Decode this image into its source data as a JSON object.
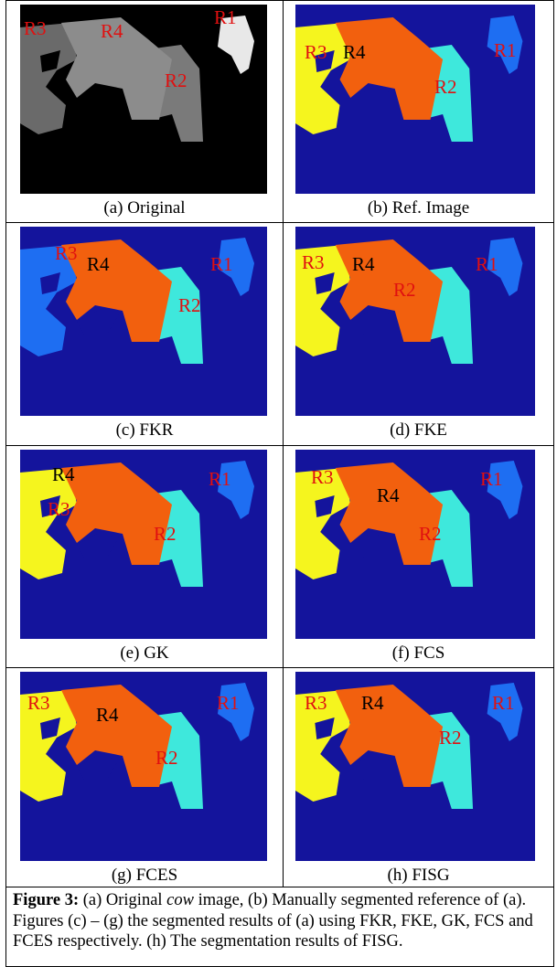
{
  "figure": {
    "panels": [
      {
        "caption": "(a) Original",
        "regions": [
          "R3",
          "R4",
          "R2",
          "R1"
        ]
      },
      {
        "caption": "(b) Ref. Image",
        "regions": [
          "R3",
          "R4",
          "R2",
          "R1"
        ]
      },
      {
        "caption": "(c) FKR",
        "regions": [
          "R3",
          "R4",
          "R2",
          "R1"
        ]
      },
      {
        "caption": "(d) FKE",
        "regions": [
          "R3",
          "R4",
          "R2",
          "R1"
        ]
      },
      {
        "caption": "(e) GK",
        "regions": [
          "R4",
          "R3",
          "R2",
          "R1"
        ]
      },
      {
        "caption": "(f) FCS",
        "regions": [
          "R3",
          "R4",
          "R2",
          "R1"
        ]
      },
      {
        "caption": "(g) FCES",
        "regions": [
          "R3",
          "R4",
          "R2",
          "R1"
        ]
      },
      {
        "caption": "(h) FISG",
        "regions": [
          "R3",
          "R4",
          "R2",
          "R1"
        ]
      }
    ],
    "caption": {
      "label": "Figure 3:",
      "parts": [
        " (a) Original ",
        "cow",
        " image, (b) Manually segmented reference of (a). Figures (c) – (g) the segmented results of (a) using FKR, FKE, GK, FCS and FCES respectively. (h) The segmentation results of FISG."
      ]
    }
  }
}
